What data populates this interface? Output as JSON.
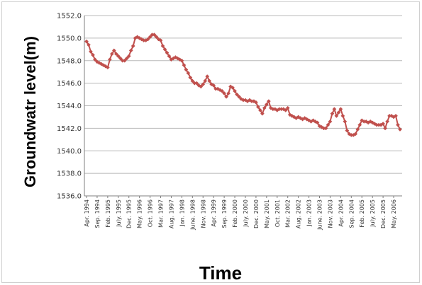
{
  "chart_data": {
    "type": "line",
    "xlabel": "Time",
    "ylabel": "Groundwatr level(m)",
    "ylim": [
      1536.0,
      1552.0
    ],
    "y_ticks": [
      "1536.0",
      "1538.0",
      "1540.0",
      "1542.0",
      "1544.0",
      "1546.0",
      "1548.0",
      "1550.0",
      "1552.0"
    ],
    "x_tick_labels": [
      "Apr. 1994",
      "Sep. 1994",
      "Feb. 1995",
      "July. 1995",
      "Dec. 1995",
      "May. 1996",
      "Oct. 1996",
      "Mar. 1997",
      "Aug. 1997",
      "Jan. 1998",
      "June. 1998",
      "Nov. 1998",
      "Apr. 1999",
      "Sep. 1999",
      "Feb. 2000",
      "July. 2000",
      "Dec. 2000",
      "May. 2001",
      "Oct. 2001",
      "Mar. 2002",
      "Aug. 2002",
      "Jan. 2003",
      "June. 2003",
      "Nov. 2003",
      "Apr. 2004",
      "Sep. 2004",
      "Feb. 2005",
      "July. 2005",
      "Dec. 2005",
      "May. 2006"
    ],
    "grid": "horizontal",
    "legend": "none",
    "series": [
      {
        "color": "#c0504d",
        "x": [
          "1994-04",
          "1994-05",
          "1994-06",
          "1994-07",
          "1994-08",
          "1994-09",
          "1994-10",
          "1994-11",
          "1994-12",
          "1995-01",
          "1995-02",
          "1995-03",
          "1995-04",
          "1995-05",
          "1995-06",
          "1995-07",
          "1995-08",
          "1995-09",
          "1995-10",
          "1995-11",
          "1995-12",
          "1996-01",
          "1996-02",
          "1996-03",
          "1996-04",
          "1996-05",
          "1996-06",
          "1996-07",
          "1996-08",
          "1996-09",
          "1996-10",
          "1996-11",
          "1996-12",
          "1997-01",
          "1997-02",
          "1997-03",
          "1997-04",
          "1997-05",
          "1997-06",
          "1997-07",
          "1997-08",
          "1997-09",
          "1997-10",
          "1997-11",
          "1997-12",
          "1998-01",
          "1998-02",
          "1998-03",
          "1998-04",
          "1998-05",
          "1998-06",
          "1998-07",
          "1998-08",
          "1998-09",
          "1998-10",
          "1998-11",
          "1998-12",
          "1999-01",
          "1999-02",
          "1999-03",
          "1999-04",
          "1999-05",
          "1999-06",
          "1999-07",
          "1999-08",
          "1999-09",
          "1999-10",
          "1999-11",
          "1999-12",
          "2000-01",
          "2000-02",
          "2000-03",
          "2000-04",
          "2000-05",
          "2000-06",
          "2000-07",
          "2000-08",
          "2000-09",
          "2000-10",
          "2000-11",
          "2000-12",
          "2001-01",
          "2001-02",
          "2001-03",
          "2001-04",
          "2001-05",
          "2001-06",
          "2001-07",
          "2001-08",
          "2001-09",
          "2001-10",
          "2001-11",
          "2001-12",
          "2002-01",
          "2002-02",
          "2002-03",
          "2002-04",
          "2002-05",
          "2002-06",
          "2002-07",
          "2002-08",
          "2002-09",
          "2002-10",
          "2002-11",
          "2002-12",
          "2003-01",
          "2003-02",
          "2003-03",
          "2003-04",
          "2003-05",
          "2003-06",
          "2003-07",
          "2003-08",
          "2003-09",
          "2003-10",
          "2003-11",
          "2003-12",
          "2004-01",
          "2004-02",
          "2004-03",
          "2004-04",
          "2004-05",
          "2004-06",
          "2004-07",
          "2004-08",
          "2004-09",
          "2004-10",
          "2004-11",
          "2004-12",
          "2005-01",
          "2005-02",
          "2005-03",
          "2005-04",
          "2005-05",
          "2005-06",
          "2005-07",
          "2005-08",
          "2005-09",
          "2005-10",
          "2005-11",
          "2005-12",
          "2006-01",
          "2006-02",
          "2006-03",
          "2006-04",
          "2006-05",
          "2006-06",
          "2006-07",
          "2006-08"
        ],
        "values": [
          1549.7,
          1549.4,
          1548.8,
          1548.5,
          1548.1,
          1547.9,
          1547.8,
          1547.7,
          1547.6,
          1547.5,
          1547.4,
          1548.1,
          1548.6,
          1548.9,
          1548.6,
          1548.4,
          1548.2,
          1548.0,
          1548.0,
          1548.2,
          1548.4,
          1548.9,
          1549.3,
          1550.0,
          1550.1,
          1550.0,
          1549.9,
          1549.8,
          1549.8,
          1549.9,
          1550.1,
          1550.3,
          1550.3,
          1550.1,
          1549.9,
          1549.8,
          1549.3,
          1549.0,
          1548.7,
          1548.4,
          1548.1,
          1548.2,
          1548.3,
          1548.2,
          1548.1,
          1548.0,
          1547.6,
          1547.2,
          1546.9,
          1546.5,
          1546.2,
          1546.0,
          1546.0,
          1545.8,
          1545.7,
          1545.9,
          1546.2,
          1546.6,
          1546.2,
          1545.9,
          1545.8,
          1545.5,
          1545.5,
          1545.4,
          1545.3,
          1545.1,
          1544.8,
          1545.1,
          1545.7,
          1545.6,
          1545.3,
          1545.0,
          1544.8,
          1544.6,
          1544.5,
          1544.5,
          1544.4,
          1544.5,
          1544.4,
          1544.4,
          1544.3,
          1543.9,
          1543.6,
          1543.3,
          1543.8,
          1544.1,
          1544.4,
          1543.8,
          1543.7,
          1543.7,
          1543.6,
          1543.7,
          1543.7,
          1543.7,
          1543.6,
          1543.8,
          1543.2,
          1543.1,
          1543.0,
          1542.9,
          1543.0,
          1542.9,
          1542.8,
          1542.9,
          1542.8,
          1542.7,
          1542.6,
          1542.7,
          1542.6,
          1542.5,
          1542.2,
          1542.1,
          1542.0,
          1542.0,
          1542.3,
          1542.6,
          1543.3,
          1543.7,
          1543.1,
          1543.4,
          1543.7,
          1543.1,
          1542.6,
          1541.8,
          1541.5,
          1541.4,
          1541.4,
          1541.5,
          1541.9,
          1542.3,
          1542.7,
          1542.6,
          1542.6,
          1542.5,
          1542.6,
          1542.5,
          1542.4,
          1542.3,
          1542.3,
          1542.3,
          1542.4,
          1542.0,
          1542.6,
          1543.1,
          1543.1,
          1543.0,
          1543.1,
          1542.3,
          1541.9
        ]
      }
    ]
  }
}
